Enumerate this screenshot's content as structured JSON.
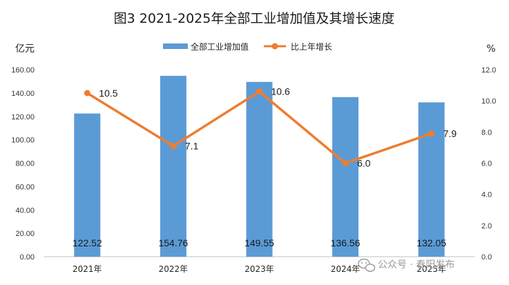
{
  "chart_data": {
    "type": "bar",
    "title": "图3  2021-2025年全部工业增加值及其增长速度",
    "categories": [
      "2021年",
      "2022年",
      "2023年",
      "2024年",
      "2025年"
    ],
    "series": [
      {
        "name": "全部工业增加值",
        "type": "bar",
        "axis": "left",
        "color": "#5b9bd5",
        "values": [
          122.52,
          154.76,
          149.55,
          136.56,
          132.05
        ],
        "labels": [
          "122.52",
          "154.76",
          "149.55",
          "136.56",
          "132.05"
        ]
      },
      {
        "name": "比上年增长",
        "type": "line",
        "axis": "right",
        "color": "#ed7d31",
        "values": [
          10.5,
          7.1,
          10.6,
          6.0,
          7.9
        ],
        "labels": [
          "10.5",
          "7.1",
          "10.6",
          "6.0",
          "7.9"
        ]
      }
    ],
    "y_left": {
      "unit": "亿元",
      "ylim": [
        0,
        160
      ],
      "ticks": [
        "0.00",
        "20.00",
        "40.00",
        "60.00",
        "80.00",
        "100.00",
        "120.00",
        "140.00",
        "160.00"
      ]
    },
    "y_right": {
      "unit": "%",
      "ylim": [
        0,
        12
      ],
      "ticks": [
        "0.0",
        "2.0",
        "4.0",
        "6.0",
        "8.0",
        "10.0",
        "12.0"
      ]
    },
    "legend_position": "top-center",
    "grid": false
  },
  "watermark": {
    "text": "公众号 · 春阳发布",
    "icon": "wechat-icon",
    "color": "#9a9a9a"
  }
}
